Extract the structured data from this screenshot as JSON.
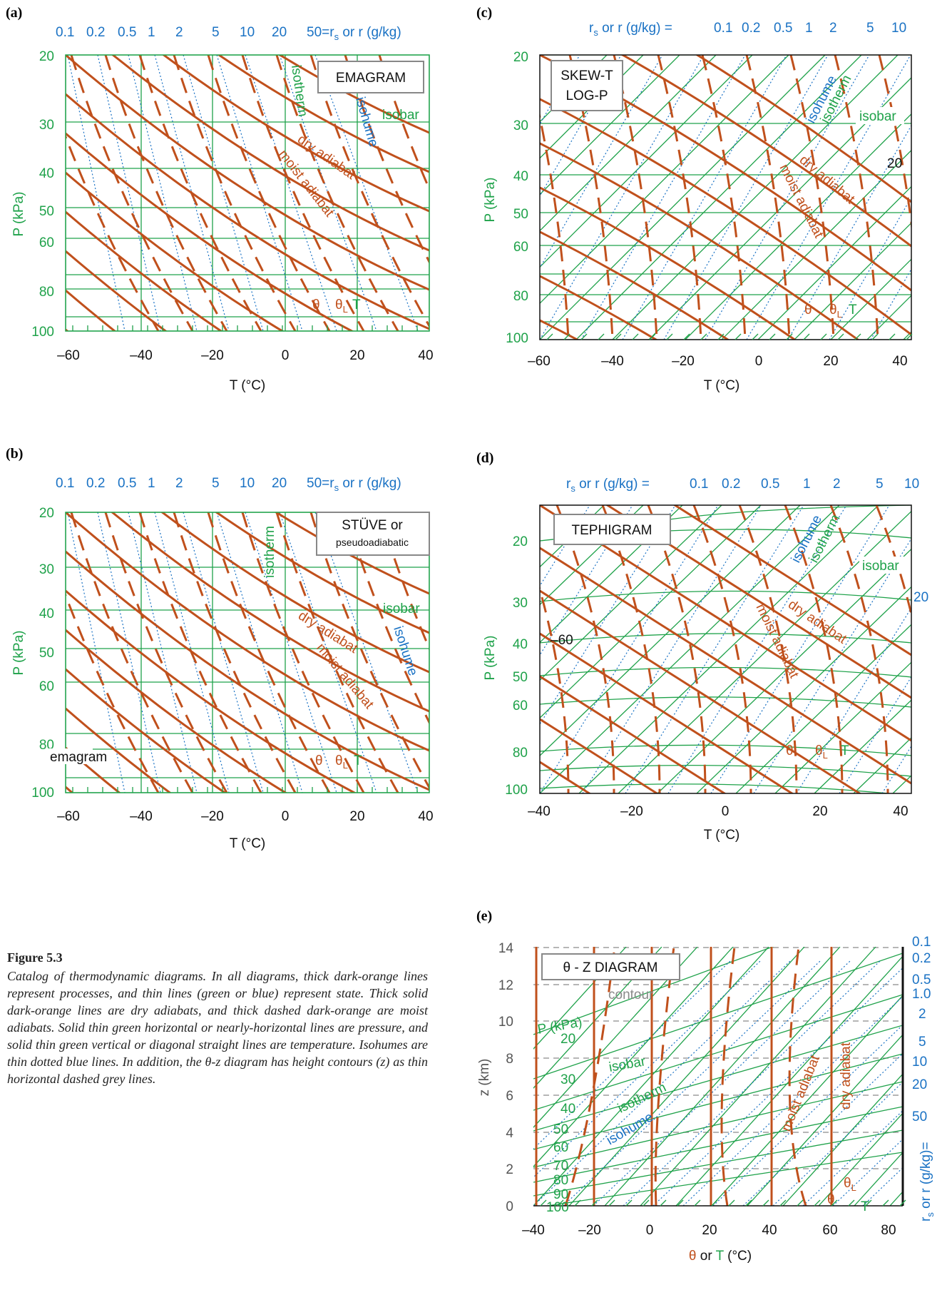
{
  "colors": {
    "process": "#c0501c",
    "state_green": "#1fa24a",
    "isohume_blue": "#1a72c4",
    "contour_grey": "#8a8a8a",
    "text_black": "#111111"
  },
  "chart_data": [
    {
      "panel": "(a)",
      "type": "diagram",
      "box_label": "EMAGRAM",
      "xlabel": "T (°C)",
      "ylabel": "P (kPa)",
      "x_ticks": [
        "–60",
        "–40",
        "–20",
        "0",
        "20",
        "40"
      ],
      "y_ticks": [
        "20",
        "30",
        "40",
        "50",
        "60",
        "80",
        "100"
      ],
      "top_ticks": [
        "0.1",
        "0.2",
        "0.5",
        "1",
        "2",
        "5",
        "10",
        "20"
      ],
      "top_label_main": "50=r",
      "top_label_sub": "s",
      "top_label_end": " or  r (g/kg)",
      "labels": {
        "isotherm": "isotherm",
        "isobar": "isobar",
        "isohume": "isohume",
        "dry_adiabat": "dry adiabat",
        "moist_adiabat": "moist adiabat",
        "theta": "θ",
        "thetaL": "θ",
        "thetaL_sub": "L",
        "T": "T"
      }
    },
    {
      "panel": "(b)",
      "type": "diagram",
      "box_label": "STÜVE or",
      "box_label2": "pseudoadiabatic",
      "xlabel": "T (°C)",
      "ylabel": "P (kPa)",
      "x_ticks": [
        "–60",
        "–40",
        "–20",
        "0",
        "20",
        "40"
      ],
      "y_ticks": [
        "20",
        "30",
        "40",
        "50",
        "60",
        "80",
        "100"
      ],
      "top_ticks": [
        "0.1",
        "0.2",
        "0.5",
        "1",
        "2",
        "5",
        "10",
        "20"
      ],
      "top_label_main": "50=r",
      "top_label_sub": "s",
      "top_label_end": " or  r (g/kg)",
      "labels": {
        "isotherm": "isotherm",
        "isobar": "isobar",
        "isohume": "isohume",
        "dry_adiabat": "dry adiabat",
        "moist_adiabat": "moist adiabat",
        "emagram": "emagram",
        "theta": "θ",
        "thetaL": "θ",
        "thetaL_sub": "L",
        "T": "T"
      }
    },
    {
      "panel": "(c)",
      "type": "diagram",
      "box_label": "SKEW-T",
      "box_label2": "LOG-P",
      "xlabel": "T (°C)",
      "ylabel": "P (kPa)",
      "x_ticks": [
        "–60",
        "–40",
        "–20",
        "0",
        "20",
        "40"
      ],
      "y_ticks": [
        "20",
        "30",
        "40",
        "50",
        "60",
        "80",
        "100"
      ],
      "top_prefix": "r",
      "top_prefix_sub": "s",
      "top_prefix_end": "  or  r (g/kg) =",
      "top_ticks": [
        "0.1",
        "0.2",
        "0.5",
        "1",
        "2",
        "5",
        "10"
      ],
      "side_value": "20",
      "labels": {
        "isotherm": "isotherm",
        "isobar": "isobar",
        "isohume": "isohume",
        "dry_adiabat": "dry adiabat",
        "moist_adiabat": "moist adiabat",
        "theta": "θ",
        "thetaL": "θ",
        "thetaL_sub": "L",
        "T": "T"
      }
    },
    {
      "panel": "(d)",
      "type": "diagram",
      "box_label": "TEPHIGRAM",
      "xlabel": "T (°C)",
      "ylabel": "P (kPa)",
      "x_ticks": [
        "–40",
        "–20",
        "0",
        "20",
        "40"
      ],
      "y_ticks": [
        "20",
        "30",
        "40",
        "50",
        "60",
        "80",
        "100"
      ],
      "top_prefix": "r",
      "top_prefix_sub": "s",
      "top_prefix_end": "  or  r (g/kg) =",
      "top_ticks": [
        "0.1",
        "0.2",
        "0.5",
        "1",
        "2",
        "5",
        "10"
      ],
      "side_value": "20",
      "inner_value": "–60",
      "labels": {
        "isotherm": "isotherm",
        "isobar": "isobar",
        "isohume": "isohume",
        "dry_adiabat": "dry adiabat",
        "moist_adiabat": "moist adiabat",
        "theta": "θ",
        "thetaL": "θ",
        "thetaL_sub": "L",
        "T": "T"
      }
    },
    {
      "panel": "(e)",
      "type": "diagram",
      "box_label": "θ - Z  DIAGRAM",
      "xlabel_theta": "θ",
      "xlabel_or": " or ",
      "xlabel_T": "T",
      "xlabel_unit": " (°C)",
      "ylabel": "z (km)",
      "x_ticks": [
        "–40",
        "–20",
        "0",
        "20",
        "40",
        "60",
        "80"
      ],
      "y_ticks": [
        "0",
        "2",
        "4",
        "6",
        "8",
        "10",
        "12",
        "14"
      ],
      "pressure_label": "P (kPa)",
      "pressure_ticks": [
        "20",
        "30",
        "40",
        "50",
        "60",
        "70",
        "80",
        "90",
        "100"
      ],
      "right_ticks": [
        "0.1",
        "0.2",
        "0.5",
        "1.0",
        "2",
        "5",
        "10",
        "20",
        "50"
      ],
      "right_label": "r",
      "right_label_sub": "s",
      "right_label_end": " or r (g/kg)=",
      "labels": {
        "contour": "contour",
        "isobar": "isobar",
        "isotherm": "isotherm",
        "isohume": "isohume",
        "moist_adiabat": "moist adiabat",
        "dry_adiabat": "dry adiabat",
        "theta": "θ",
        "thetaL": "θ",
        "thetaL_sub": "L",
        "T": "T"
      }
    }
  ],
  "caption": {
    "title": "Figure 5.3",
    "text": "Catalog of thermodynamic diagrams.  In all diagrams, thick dark-orange lines represent processes, and thin lines (green or blue) represent state.  Thick solid dark-orange lines are dry adiabats, and thick dashed dark-orange are moist adiabats.  Solid thin green horizontal or nearly-horizontal lines are pressure, and solid thin green vertical or diagonal straight lines are temperature.  Isohumes are thin dotted blue lines.  In addition, the θ-z diagram has height contours (z) as thin horizontal dashed grey lines."
  }
}
